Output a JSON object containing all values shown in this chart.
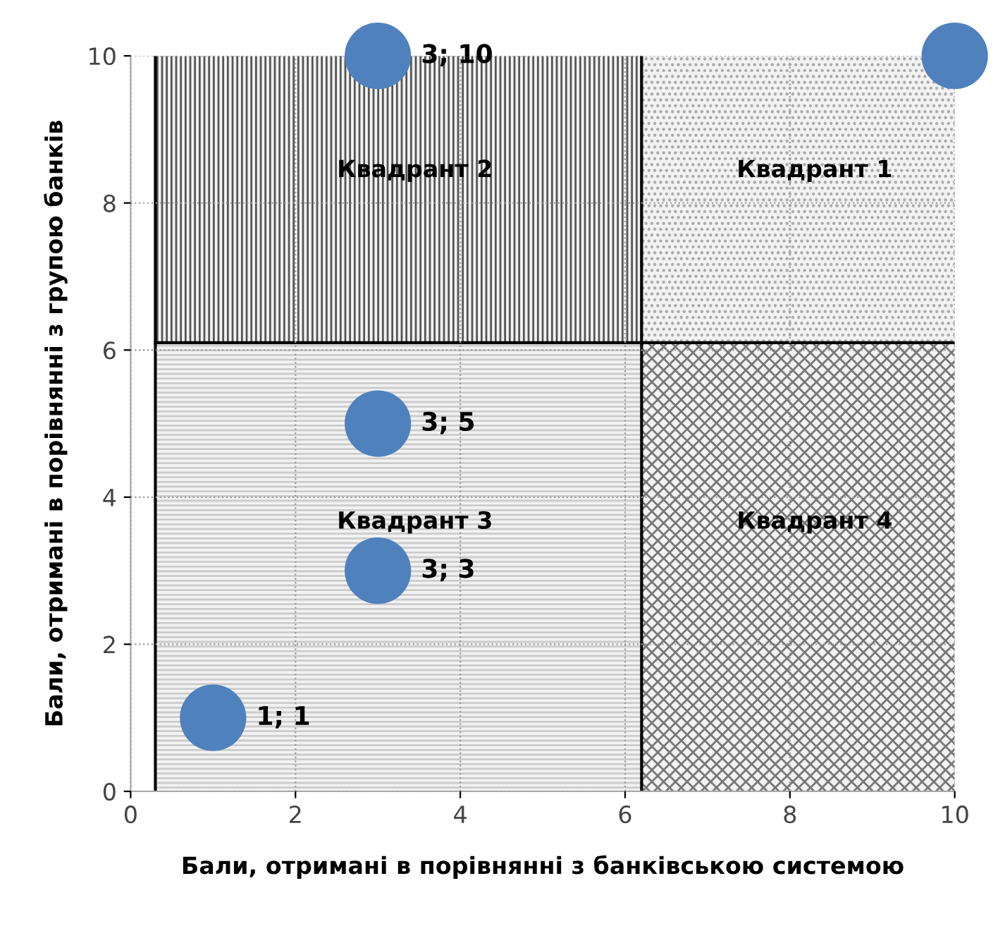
{
  "chart_data": {
    "type": "bubble",
    "xlabel": "Бали, отримані в порівнянні з банківською системою",
    "ylabel": "Бали, отримані в порівнянні з групою банків",
    "x": [
      1,
      3,
      3,
      3,
      10
    ],
    "series": [
      {
        "color": "#4f81bd",
        "values": [
          1,
          3,
          5,
          10,
          10
        ],
        "sizes": [
          1,
          1,
          1,
          1,
          1
        ],
        "value_labels": [
          "1; 1",
          "3; 3",
          "3; 5",
          "3; 10",
          null
        ]
      }
    ],
    "xlim": [
      0,
      10
    ],
    "ylim": [
      0,
      10
    ],
    "xticks": [
      0,
      2,
      4,
      6,
      8,
      10
    ],
    "yticks": [
      0,
      2,
      4,
      6,
      8,
      10
    ],
    "grid": true,
    "legend": false,
    "ref_lines": [
      {
        "axis": "x",
        "value": 0.3,
        "color": "#000000"
      },
      {
        "axis": "x",
        "value": 6.2,
        "color": "#000000"
      },
      {
        "axis": "y",
        "value": 6.1,
        "color": "#000000"
      }
    ],
    "annotations": [
      "Квадрант 2",
      "Квадрант 1",
      "Квадрант 3",
      "Квадрант 4"
    ]
  }
}
